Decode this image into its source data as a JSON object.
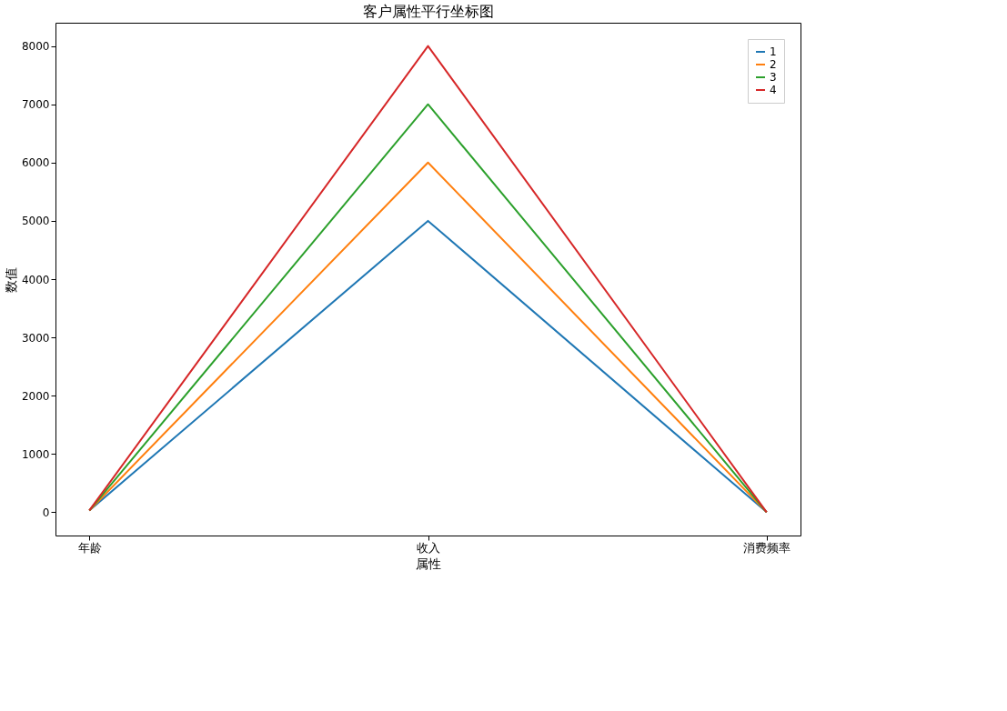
{
  "chart_data": {
    "type": "line",
    "title": "客户属性平行坐标图",
    "xlabel": "属性",
    "ylabel": "数值",
    "categories": [
      "年龄",
      "收入",
      "消费频率"
    ],
    "series": [
      {
        "name": "1",
        "color": "#1f77b4",
        "values": [
          30,
          5000,
          0
        ]
      },
      {
        "name": "2",
        "color": "#ff7f0e",
        "values": [
          30,
          6000,
          0
        ]
      },
      {
        "name": "3",
        "color": "#2ca02c",
        "values": [
          30,
          7000,
          0
        ]
      },
      {
        "name": "4",
        "color": "#d62728",
        "values": [
          30,
          8000,
          0
        ]
      }
    ],
    "ylim": [
      -400,
      8400
    ],
    "yticks": [
      0,
      1000,
      2000,
      3000,
      4000,
      5000,
      6000,
      7000,
      8000
    ],
    "grid": false,
    "legend": "top right",
    "marker": "none",
    "line_style": "solid"
  }
}
